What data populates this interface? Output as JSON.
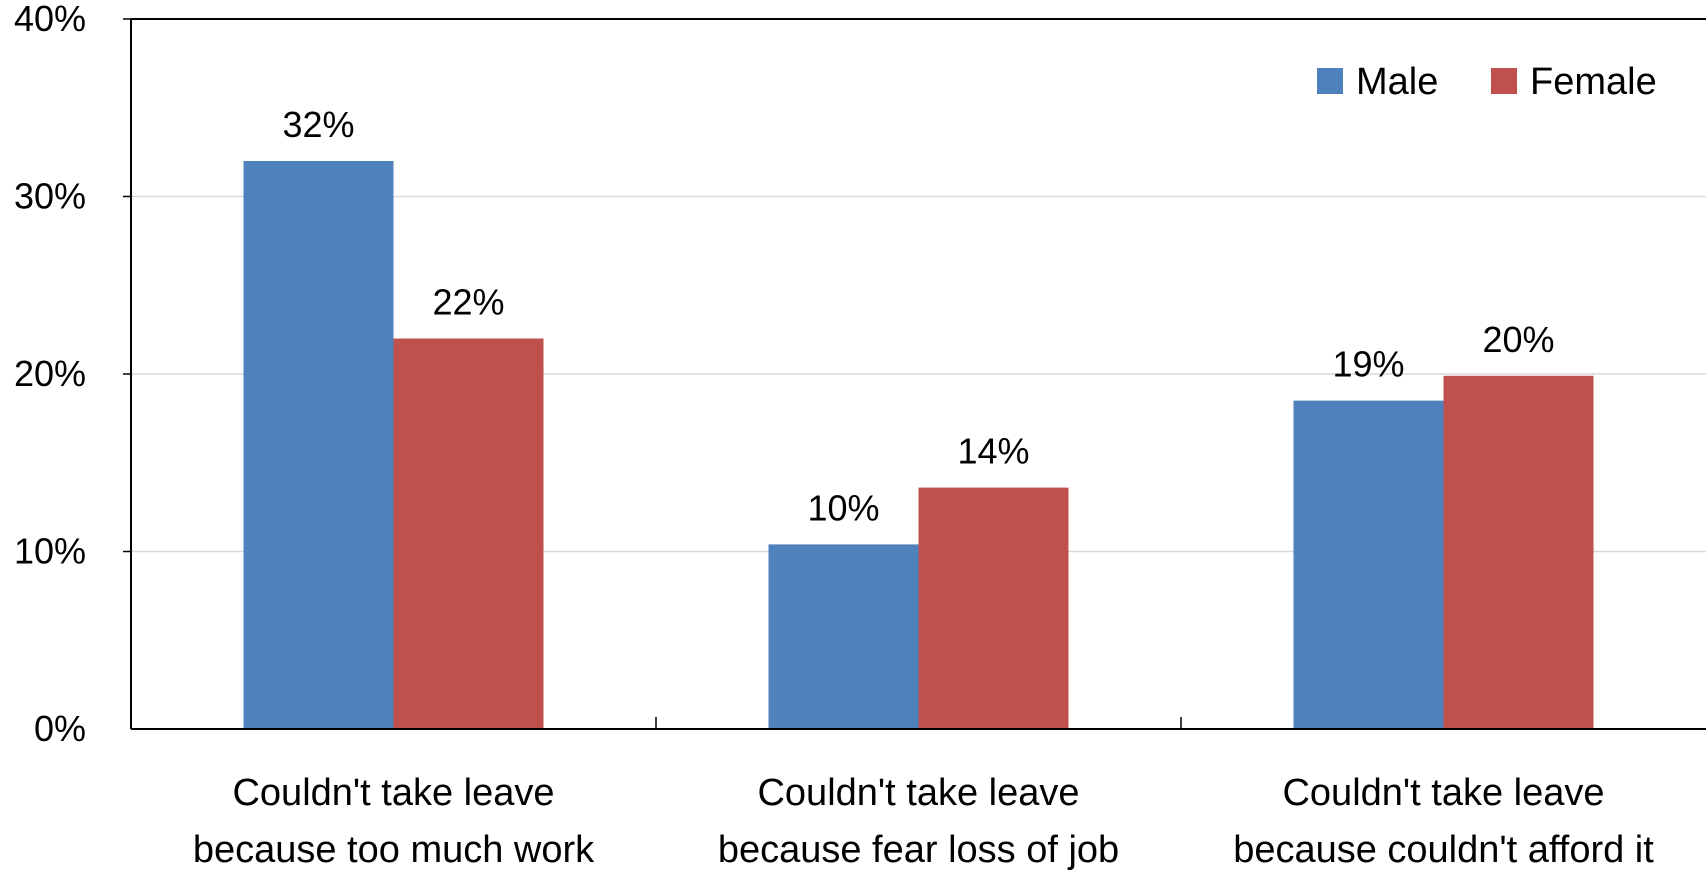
{
  "chart_data": {
    "type": "bar",
    "categories": [
      [
        "Couldn't take leave",
        "because too much work"
      ],
      [
        "Couldn't take leave",
        "because fear loss of job"
      ],
      [
        "Couldn't take leave",
        "because couldn't afford it"
      ]
    ],
    "series": [
      {
        "name": "Male",
        "color": "#4F81BD",
        "values": [
          32,
          10.4,
          18.5
        ],
        "labels": [
          "32%",
          "10%",
          "19%"
        ]
      },
      {
        "name": "Female",
        "color": "#C0504D",
        "values": [
          22,
          13.6,
          19.9
        ],
        "labels": [
          "22%",
          "14%",
          "20%"
        ]
      }
    ],
    "y_ticks": [
      "0%",
      "10%",
      "20%",
      "30%",
      "40%"
    ],
    "ylim": [
      0,
      40
    ],
    "grid": true,
    "legend_position": "top-right",
    "title": "",
    "xlabel": "",
    "ylabel": ""
  }
}
